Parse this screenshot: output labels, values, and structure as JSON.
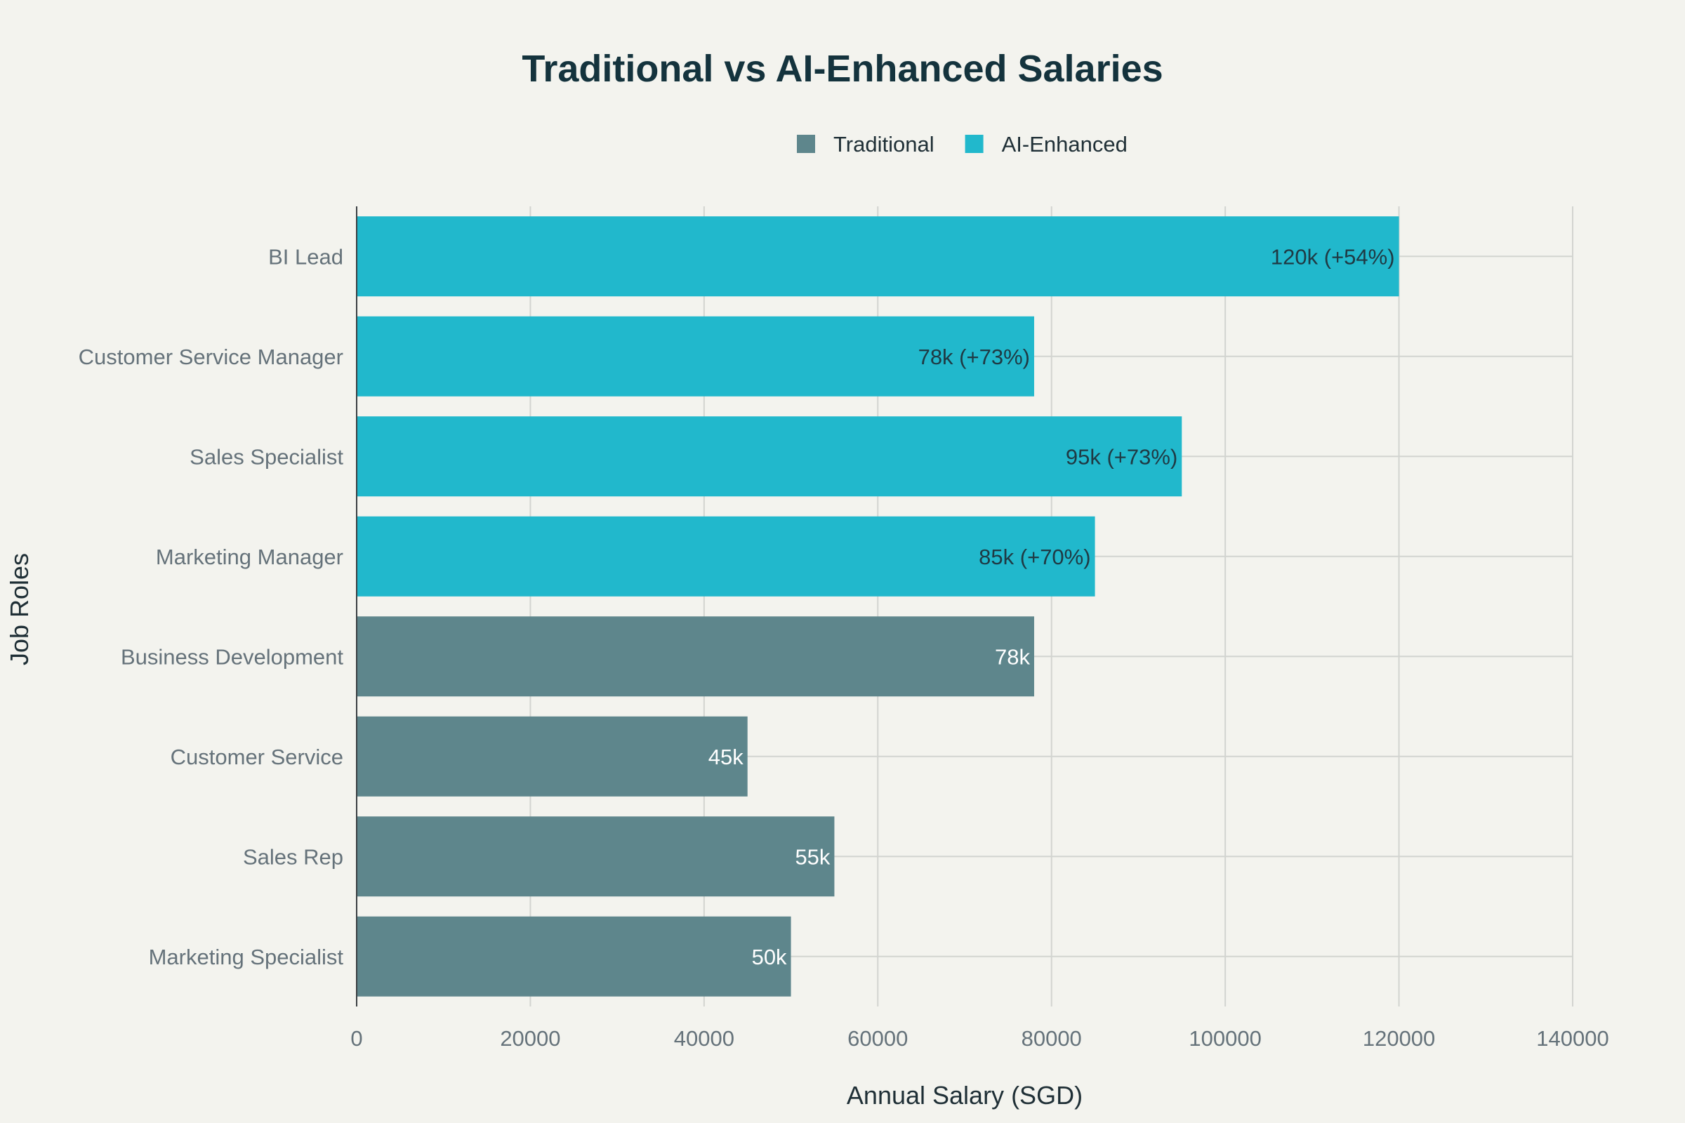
{
  "chart_data": {
    "type": "bar",
    "orientation": "horizontal",
    "title": "Traditional vs AI-Enhanced Salaries",
    "xlabel": "Annual Salary (SGD)",
    "ylabel": "Job Roles",
    "xlim": [
      0,
      140000
    ],
    "xticks": [
      0,
      20000,
      40000,
      60000,
      80000,
      100000,
      120000,
      140000
    ],
    "grid": true,
    "legend_position": "top-center",
    "categories": [
      "Marketing Specialist",
      "Sales Rep",
      "Customer Service",
      "Business Development",
      "Marketing Manager",
      "Sales Specialist",
      "Customer Service Manager",
      "BI Lead"
    ],
    "series": [
      {
        "name": "Traditional",
        "color": "#5e868c",
        "label_color": "#ffffff",
        "values": [
          50000,
          55000,
          45000,
          78000,
          null,
          null,
          null,
          null
        ],
        "labels": [
          "50k",
          "55k",
          "45k",
          "78k",
          null,
          null,
          null,
          null
        ]
      },
      {
        "name": "AI-Enhanced",
        "color": "#21b8cc",
        "label_color": "#1f3a44",
        "values": [
          null,
          null,
          null,
          null,
          85000,
          95000,
          78000,
          120000
        ],
        "labels": [
          null,
          null,
          null,
          null,
          "85k (+70%)",
          "95k (+73%)",
          "78k (+73%)",
          "120k (+54%)"
        ]
      }
    ]
  }
}
